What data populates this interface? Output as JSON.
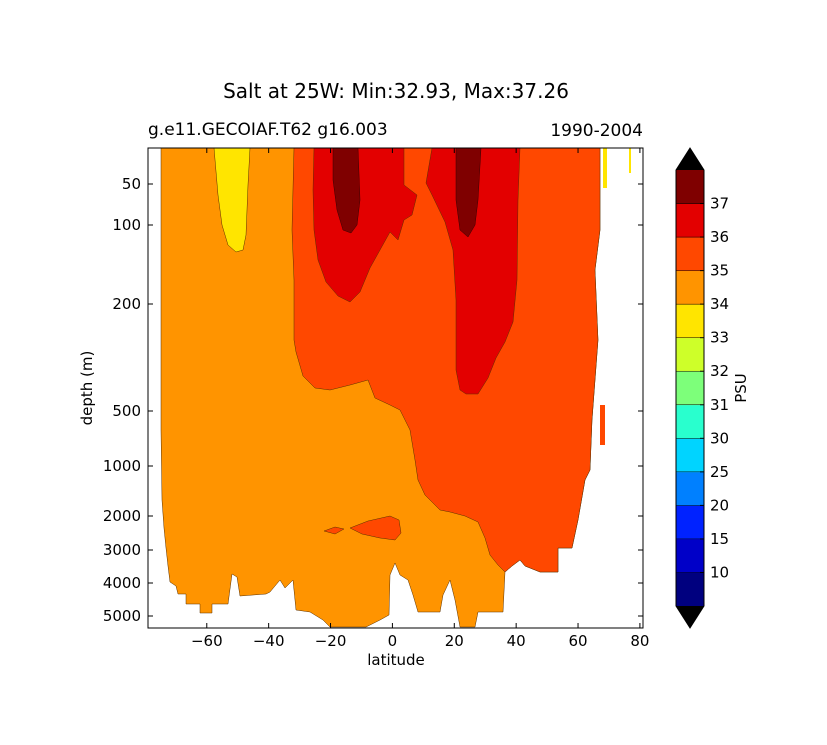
{
  "chart_data": {
    "type": "heatmap",
    "title": "Salt at 25W: Min:32.93, Max:37.26",
    "subtitle_left": "g.e11.GECOIAF.T62 g16.003",
    "subtitle_right": "1990-2004",
    "xlabel": "latitude",
    "ylabel": "depth (m)",
    "xlim": [
      -79,
      81
    ],
    "x_ticks": [
      -60,
      -40,
      -20,
      0,
      20,
      40,
      60,
      80
    ],
    "x_tick_labels": [
      "−60",
      "−40",
      "−20",
      "0",
      "20",
      "40",
      "60",
      "80"
    ],
    "y_ticks": [
      50,
      100,
      200,
      500,
      1000,
      2000,
      3000,
      4000,
      5000
    ],
    "y_tick_labels": [
      "50",
      "100",
      "200",
      "500",
      "1000",
      "2000",
      "3000",
      "4000",
      "5000"
    ],
    "y_inverted": true,
    "colorbar": {
      "label": "PSU",
      "levels": [
        10,
        15,
        20,
        25,
        30,
        31,
        32,
        33,
        34,
        35,
        36,
        37
      ],
      "level_labels": [
        "10",
        "15",
        "20",
        "25",
        "30",
        "31",
        "32",
        "33",
        "34",
        "35",
        "36",
        "37"
      ],
      "colors": [
        "#00007f",
        "#0000c8",
        "#0022ff",
        "#0080ff",
        "#00d4ff",
        "#29ffce",
        "#7dff7a",
        "#ceff29",
        "#ffe500",
        "#ff9400",
        "#ff4800",
        "#e30000",
        "#7f0000"
      ],
      "extend_colors": [
        "#000000",
        "#000000"
      ]
    },
    "regions": [
      {
        "band": "34-35",
        "description": "main water column, Southern Ocean to deep North Atlantic",
        "color": "#ff9400"
      },
      {
        "band": "33-34",
        "description": "low-salinity near-surface tongue near 55S",
        "color": "#ffe500"
      },
      {
        "band": "35-36",
        "description": "upper-ocean subtropical waters and North Atlantic deep water",
        "color": "#ff4800"
      },
      {
        "band": "36-37",
        "description": "subtropical salinity maxima",
        "color": "#e30000"
      },
      {
        "band": ">37",
        "description": "surface cores near 18S and 25N",
        "color": "#7f0000"
      }
    ]
  }
}
